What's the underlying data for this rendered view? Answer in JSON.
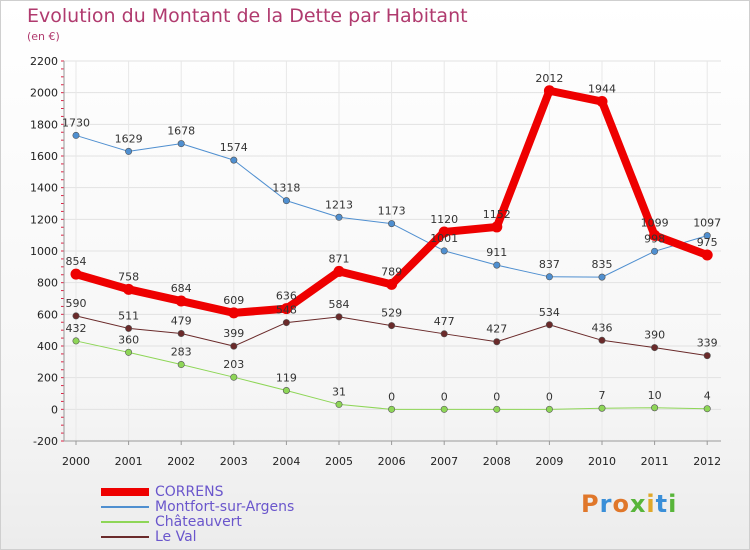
{
  "title": "Evolution du Montant de la Dette par Habitant",
  "subtitle": "(en €)",
  "logo": {
    "text": "Proxiti",
    "colors": [
      "#e0772a",
      "#3a8fd8",
      "#e0772a",
      "#58b53a",
      "#e0a82a",
      "#3a8fd8",
      "#58b53a"
    ]
  },
  "chart_data": {
    "type": "line",
    "x": [
      "2000",
      "2001",
      "2002",
      "2003",
      "2004",
      "2005",
      "2006",
      "2007",
      "2008",
      "2009",
      "2010",
      "2011",
      "2012"
    ],
    "ylim": [
      -200,
      2200
    ],
    "yticks": [
      -200,
      0,
      200,
      400,
      600,
      800,
      1000,
      1200,
      1400,
      1600,
      1800,
      2000,
      2200
    ],
    "grid": true,
    "legend_position": "bottom-left",
    "series": [
      {
        "name": "CORRENS",
        "color": "#ee0000",
        "width": 8,
        "values": [
          854,
          758,
          684,
          609,
          636,
          871,
          789,
          1120,
          1152,
          2012,
          1944,
          1099,
          975
        ]
      },
      {
        "name": "Montfort-sur-Argens",
        "color": "#4f8fd0",
        "width": 1,
        "values": [
          1730,
          1629,
          1678,
          1574,
          1318,
          1213,
          1173,
          1001,
          911,
          837,
          835,
          998,
          1097
        ]
      },
      {
        "name": "Châteauvert",
        "color": "#8ed657",
        "width": 1,
        "values": [
          432,
          360,
          283,
          203,
          119,
          31,
          0,
          0,
          0,
          0,
          7,
          10,
          4
        ]
      },
      {
        "name": "Le Val",
        "color": "#6a2a2a",
        "width": 1,
        "values": [
          590,
          511,
          479,
          399,
          548,
          584,
          529,
          477,
          427,
          534,
          436,
          390,
          339
        ]
      }
    ]
  }
}
